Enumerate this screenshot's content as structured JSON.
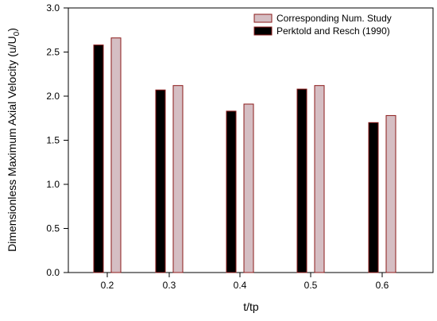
{
  "chart_data": {
    "type": "bar",
    "xlabel": "t/tp",
    "ylabel": "Dimensionless Maximum Axial Velocity (u/U",
    "ylabel_sub": "0",
    "ylabel_end": ")",
    "categories": [
      "0.2",
      "0.3",
      "0.4",
      "0.5",
      "0.6"
    ],
    "ylim": [
      0,
      3.0
    ],
    "yticks": [
      "0.0",
      "0.5",
      "1.0",
      "1.5",
      "2.0",
      "2.5",
      "3.0"
    ],
    "grid": false,
    "legend_position": "top-right",
    "series": [
      {
        "name": "Perktold and Resch (1990)",
        "color": "#000000",
        "values": [
          2.58,
          2.07,
          1.83,
          2.08,
          1.7
        ]
      },
      {
        "name": "Corresponding Num. Study",
        "color": "#d5bec3",
        "values": [
          2.66,
          2.12,
          1.91,
          2.12,
          1.78
        ]
      }
    ],
    "legend_order": [
      1,
      0
    ],
    "bar_edge_color": "#8b1a1a"
  }
}
